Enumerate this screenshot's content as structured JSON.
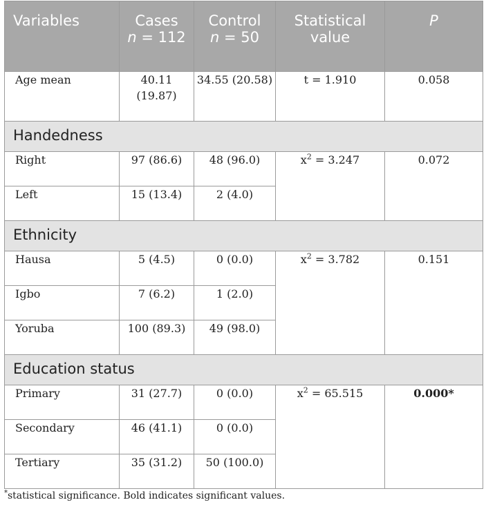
{
  "header": {
    "variables": "Variables",
    "cases_label": "Cases",
    "cases_n_var": "n",
    "cases_n_value": "= 112",
    "control_label": "Control",
    "control_n_var": "n",
    "control_n_value": "= 50",
    "stat_value": "Statistical value",
    "p": "P"
  },
  "age": {
    "label": "Age mean",
    "cases": "40.11 (19.87)",
    "control": "34.55 (20.58)",
    "stat": "t = 1.910",
    "p": "0.058"
  },
  "handedness": {
    "title": "Handedness",
    "stat_prefix": "x",
    "stat_exp": "2",
    "stat_value": " = 3.247",
    "p": "0.072",
    "rows": [
      {
        "label": "Right",
        "cases": "97 (86.6)",
        "control": "48 (96.0)"
      },
      {
        "label": "Left",
        "cases": "15 (13.4)",
        "control": "2 (4.0)"
      }
    ]
  },
  "ethnicity": {
    "title": "Ethnicity",
    "stat_prefix": "x",
    "stat_exp": "2",
    "stat_value": " = 3.782",
    "p": "0.151",
    "rows": [
      {
        "label": "Hausa",
        "cases": "5 (4.5)",
        "control": "0 (0.0)"
      },
      {
        "label": "Igbo",
        "cases": "7 (6.2)",
        "control": "1 (2.0)"
      },
      {
        "label": "Yoruba",
        "cases": "100 (89.3)",
        "control": "49 (98.0)"
      }
    ]
  },
  "education": {
    "title": "Education status",
    "stat_prefix": "x",
    "stat_exp": "2",
    "stat_value": " = 65.515",
    "p": "0.000*",
    "rows": [
      {
        "label": "Primary",
        "cases": "31 (27.7)",
        "control": "0 (0.0)"
      },
      {
        "label": "Secondary",
        "cases": "46 (41.1)",
        "control": "0 (0.0)"
      },
      {
        "label": "Tertiary",
        "cases": "35 (31.2)",
        "control": "50 (100.0)"
      }
    ]
  },
  "footnote": {
    "marker": "*",
    "text": "statistical significance. Bold indicates significant values."
  }
}
